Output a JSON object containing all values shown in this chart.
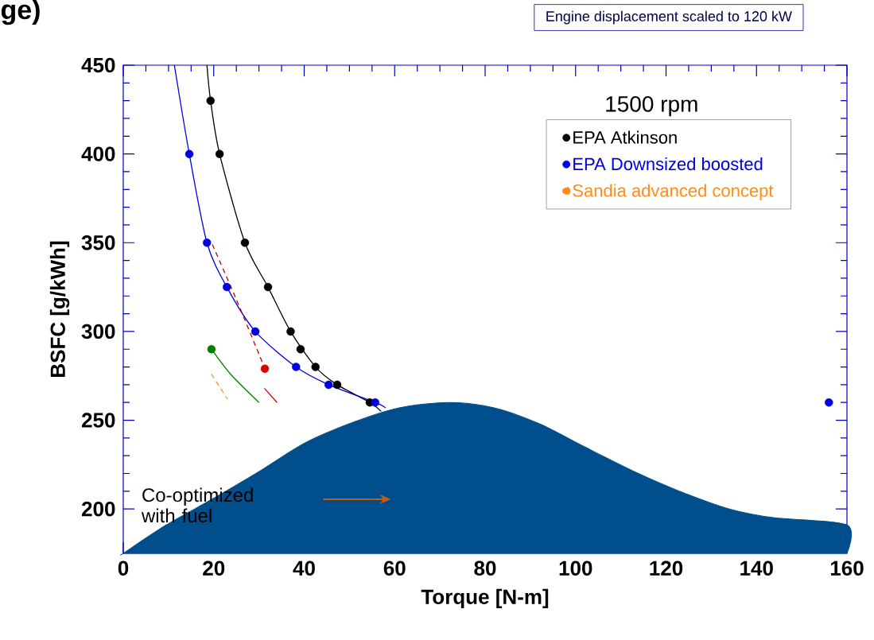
{
  "chart_data": {
    "type": "scatter",
    "xlabel": "Torque [N-m]",
    "ylabel": "BSFC [g/kWh]",
    "xlim": [
      0,
      160
    ],
    "ylim": [
      175,
      450
    ],
    "xticks": [
      0,
      20,
      40,
      60,
      80,
      100,
      120,
      140,
      160
    ],
    "yticks": [
      200,
      250,
      300,
      350,
      400,
      450
    ],
    "legend": "top right",
    "annotations": [
      "ge)",
      "Engine displacement scaled to 120 kW",
      "1500 rpm",
      "Co-optimized with fuel"
    ],
    "series": [
      {
        "name": "EPA Atkinson",
        "marker": "circle",
        "color": "#000000",
        "x": [
          19.3,
          21.3,
          26.9,
          32,
          37,
          39.2,
          42.5,
          47.3,
          54.5
        ],
        "values": [
          430,
          400,
          350,
          325,
          300,
          290,
          280,
          270,
          260
        ]
      },
      {
        "name": "EPA Downsized boosted",
        "marker": "circle",
        "color": "#0000e0",
        "x": [
          14.6,
          18.5,
          22.9,
          29.2,
          38.2,
          45.4,
          55.7,
          156
        ],
        "values": [
          400,
          350,
          325,
          300,
          280,
          270,
          260,
          260
        ]
      },
      {
        "marker": "circle",
        "color": "#e00000",
        "x": [
          31.3
        ],
        "values": [
          279
        ]
      },
      {
        "marker": "circle",
        "color": "#008000",
        "x": [
          19.5
        ],
        "values": [
          290
        ]
      },
      {
        "name": "Sandia advanced concept",
        "type": "line",
        "marker": "none",
        "line_style": "dashed",
        "color": "#ff8c1a",
        "x": [
          19.5,
          23
        ],
        "values": [
          276,
          262
        ]
      },
      {
        "type": "line",
        "marker": "none",
        "color": "#000000",
        "x": [
          18.5,
          19.3,
          21.3,
          26.9,
          32,
          37,
          42.5,
          47.3,
          54.5,
          57
        ],
        "values": [
          450,
          430,
          400,
          350,
          325,
          300,
          280,
          270,
          260,
          255
        ]
      },
      {
        "type": "line",
        "marker": "none",
        "color": "#0000e0",
        "x": [
          11.3,
          14.6,
          18.5,
          22.9,
          29.2,
          38.2,
          45.4,
          55.7,
          58
        ],
        "values": [
          450,
          400,
          350,
          325,
          300,
          280,
          270,
          260,
          257
        ]
      },
      {
        "type": "line",
        "marker": "none",
        "line_style": "dashed",
        "color": "#c00000",
        "x": [
          19.7,
          25,
          31
        ],
        "values": [
          349,
          318,
          281
        ]
      },
      {
        "type": "line",
        "marker": "none",
        "color": "#e00000",
        "x": [
          31.2,
          34
        ],
        "values": [
          268,
          260
        ]
      },
      {
        "type": "line",
        "marker": "none",
        "color": "#008000",
        "x": [
          19.5,
          23.7,
          30
        ],
        "values": [
          290,
          276,
          260
        ]
      },
      {
        "type": "area",
        "marker": "none",
        "color": "#004f8c",
        "x": [
          0,
          9.5,
          20,
          30,
          40,
          51,
          61,
          72,
          82,
          92,
          102,
          113,
          123,
          134,
          144,
          160
        ],
        "values": [
          175,
          191,
          206,
          221,
          237,
          249,
          257,
          260,
          257,
          248,
          235,
          221,
          210,
          200,
          195,
          191
        ]
      }
    ]
  }
}
